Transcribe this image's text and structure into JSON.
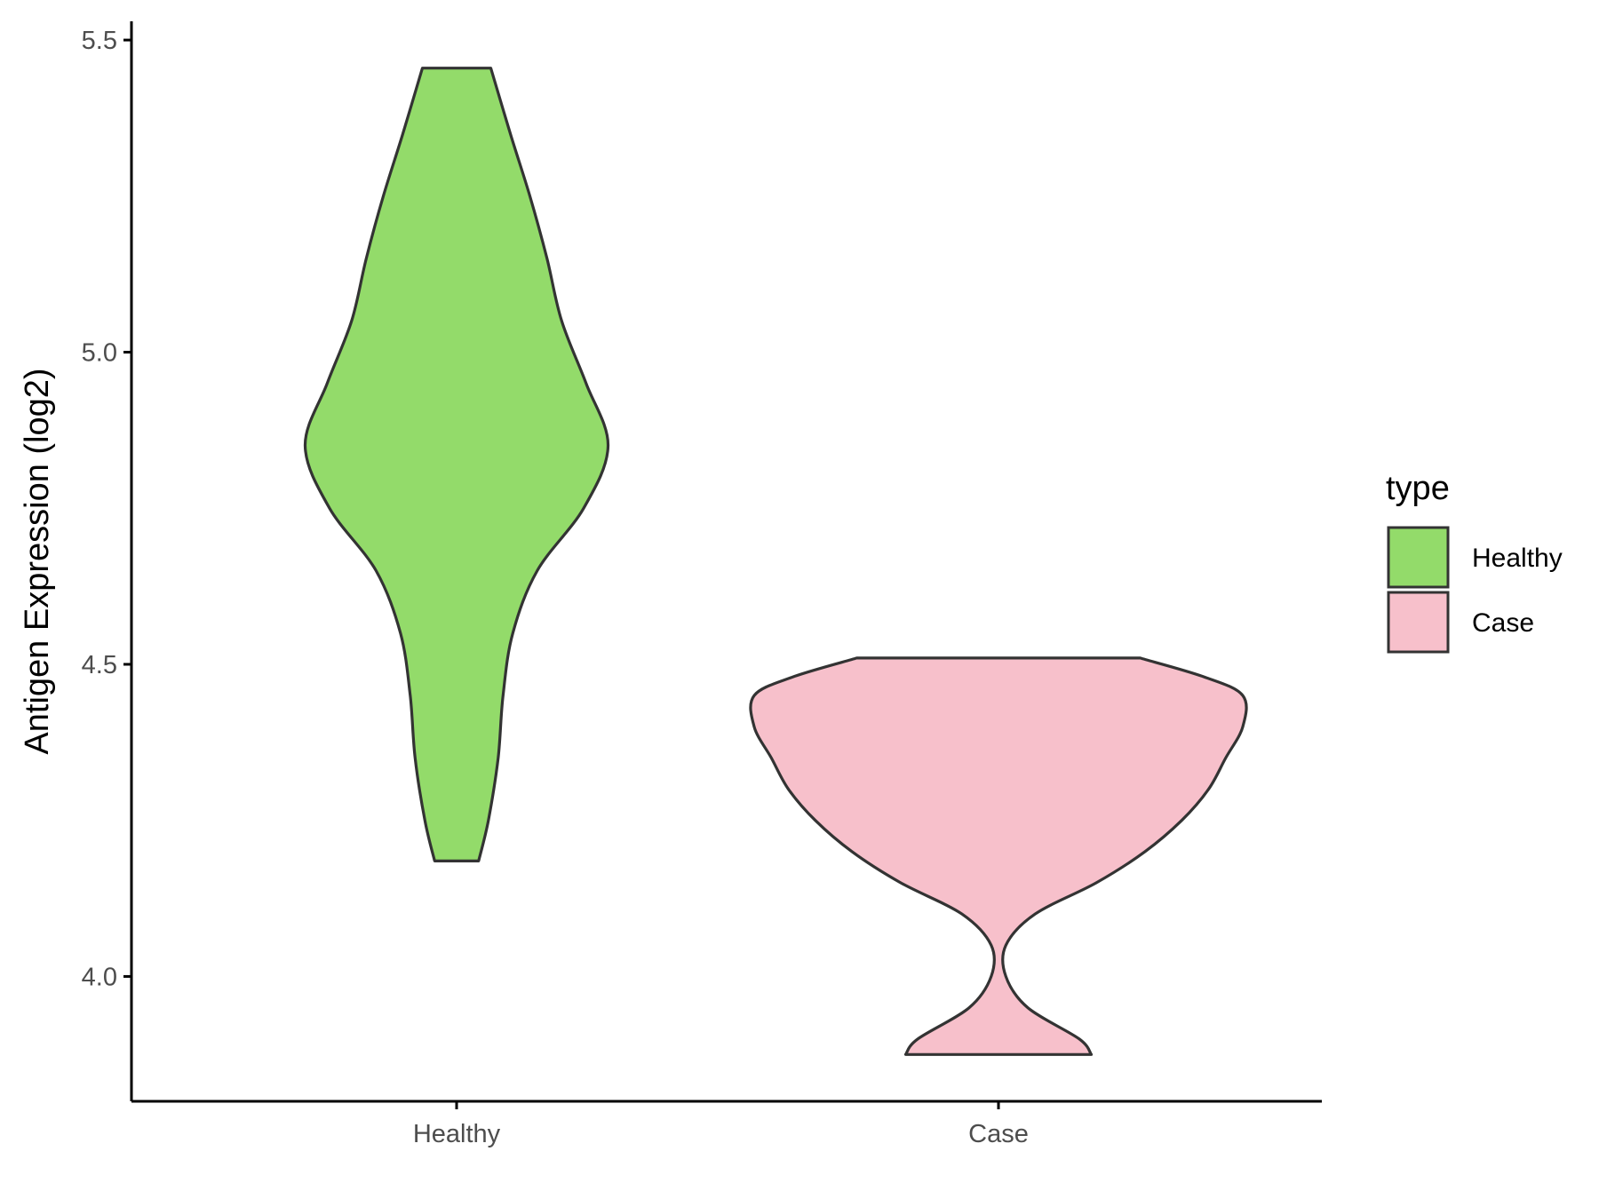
{
  "chart_data": {
    "type": "violin",
    "ylabel": "Antigen Expression (log2)",
    "xlabel": "",
    "categories": [
      "Healthy",
      "Case"
    ],
    "ylim": [
      3.8,
      5.53
    ],
    "yticks": [
      "4.0",
      "4.5",
      "5.0",
      "5.5"
    ],
    "ytick_values": [
      4.0,
      4.5,
      5.0,
      5.5
    ],
    "grid": false,
    "legend": {
      "title": "type",
      "position": "right",
      "items": [
        {
          "label": "Healthy",
          "color": "#93DB6A"
        },
        {
          "label": "Case",
          "color": "#F7C0CB"
        }
      ]
    },
    "series": [
      {
        "name": "Healthy",
        "color": "#93DB6A",
        "min": 4.185,
        "max": 5.455,
        "density_profile": [
          [
            4.185,
            0.09
          ],
          [
            4.25,
            0.13
          ],
          [
            4.35,
            0.17
          ],
          [
            4.45,
            0.19
          ],
          [
            4.55,
            0.23
          ],
          [
            4.65,
            0.33
          ],
          [
            4.75,
            0.52
          ],
          [
            4.85,
            0.62
          ],
          [
            4.95,
            0.53
          ],
          [
            5.05,
            0.43
          ],
          [
            5.15,
            0.37
          ],
          [
            5.25,
            0.3
          ],
          [
            5.35,
            0.22
          ],
          [
            5.455,
            0.14
          ]
        ]
      },
      {
        "name": "Case",
        "color": "#F7C0CB",
        "min": 3.875,
        "max": 4.51,
        "density_profile": [
          [
            3.875,
            0.38
          ],
          [
            3.9,
            0.33
          ],
          [
            3.95,
            0.12
          ],
          [
            4.0,
            0.03
          ],
          [
            4.05,
            0.03
          ],
          [
            4.1,
            0.15
          ],
          [
            4.15,
            0.4
          ],
          [
            4.2,
            0.6
          ],
          [
            4.25,
            0.75
          ],
          [
            4.3,
            0.86
          ],
          [
            4.35,
            0.93
          ],
          [
            4.4,
            1.0
          ],
          [
            4.45,
            1.0
          ],
          [
            4.48,
            0.84
          ],
          [
            4.51,
            0.58
          ]
        ]
      }
    ]
  },
  "colors": {
    "outline": "#333333",
    "axis": "#000000",
    "tick_text": "#4d4d4d"
  }
}
